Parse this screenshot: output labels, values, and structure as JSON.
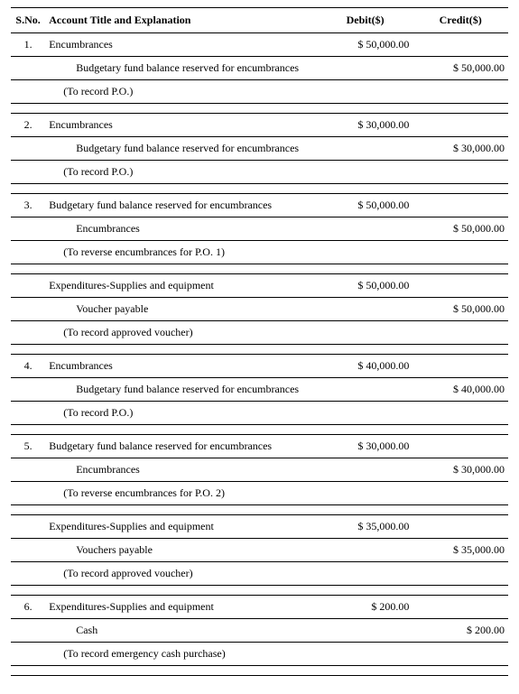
{
  "header": {
    "sno": "S.No.",
    "account": "Account Title and Explanation",
    "debit": "Debit($)",
    "credit": "Credit($)"
  },
  "entries": [
    {
      "no": "1.",
      "debit_line": {
        "title": "Encumbrances",
        "amount": "$ 50,000.00"
      },
      "credit_line": {
        "title": "Budgetary fund balance reserved for encumbrances",
        "amount": "$ 50,000.00"
      },
      "explanation": "(To record P.O.)"
    },
    {
      "no": "2.",
      "debit_line": {
        "title": "Encumbrances",
        "amount": "$ 30,000.00"
      },
      "credit_line": {
        "title": "Budgetary fund balance reserved for encumbrances",
        "amount": "$ 30,000.00"
      },
      "explanation": "(To record P.O.)"
    },
    {
      "no": "3.",
      "debit_line": {
        "title": "Budgetary fund balance reserved for encumbrances",
        "amount": "$ 50,000.00"
      },
      "credit_line": {
        "title": "Encumbrances",
        "amount": "$ 50,000.00"
      },
      "explanation": "(To reverse encumbrances for P.O. 1)"
    },
    {
      "no": "",
      "debit_line": {
        "title": "Expenditures-Supplies and equipment",
        "amount": "$ 50,000.00"
      },
      "credit_line": {
        "title": "Voucher payable",
        "amount": "$ 50,000.00"
      },
      "explanation": "(To record approved voucher)"
    },
    {
      "no": "4.",
      "debit_line": {
        "title": "Encumbrances",
        "amount": "$ 40,000.00"
      },
      "credit_line": {
        "title": "Budgetary fund balance reserved for encumbrances",
        "amount": "$ 40,000.00"
      },
      "explanation": "(To record P.O.)"
    },
    {
      "no": "5.",
      "debit_line": {
        "title": "Budgetary fund balance reserved for encumbrances",
        "amount": "$ 30,000.00"
      },
      "credit_line": {
        "title": "Encumbrances",
        "amount": "$ 30,000.00"
      },
      "explanation": "(To reverse encumbrances for P.O. 2)"
    },
    {
      "no": "",
      "debit_line": {
        "title": "Expenditures-Supplies and equipment",
        "amount": "$ 35,000.00"
      },
      "credit_line": {
        "title": "Vouchers payable",
        "amount": "$ 35,000.00"
      },
      "explanation": "(To record approved voucher)"
    },
    {
      "no": "6.",
      "debit_line": {
        "title": "Expenditures-Supplies and equipment",
        "amount": "$    200.00"
      },
      "credit_line": {
        "title": "Cash",
        "amount": "$    200.00"
      },
      "explanation": "(To record emergency cash purchase)"
    }
  ]
}
